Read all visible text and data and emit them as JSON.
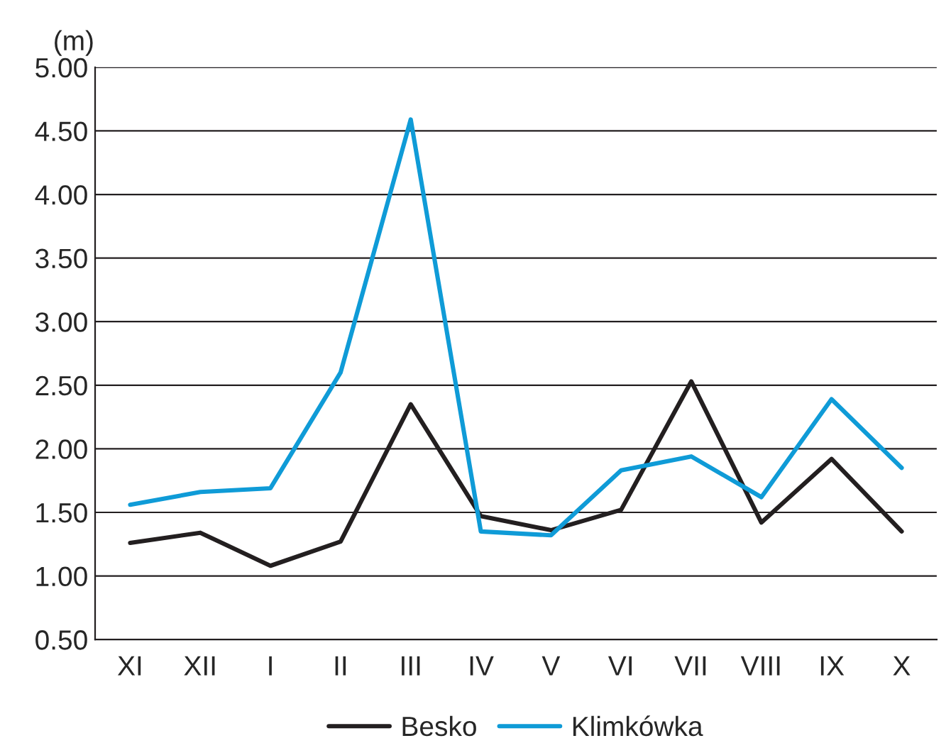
{
  "chart_data": {
    "type": "line",
    "ylabel": "(m)",
    "categories": [
      "XI",
      "XII",
      "I",
      "II",
      "III",
      "IV",
      "V",
      "VI",
      "VII",
      "VIII",
      "IX",
      "X"
    ],
    "series": [
      {
        "name": "Besko",
        "color": "#231f20",
        "values": [
          1.26,
          1.34,
          1.08,
          1.27,
          2.35,
          1.47,
          1.36,
          1.52,
          2.53,
          1.42,
          1.92,
          1.35
        ]
      },
      {
        "name": "Klimkówka",
        "color": "#0f9bd7",
        "values": [
          1.56,
          1.66,
          1.69,
          2.6,
          4.59,
          1.35,
          1.32,
          1.83,
          1.94,
          1.62,
          2.39,
          1.85
        ]
      }
    ],
    "ylim": [
      0.5,
      5.0
    ],
    "yticks": [
      {
        "value": 0.5,
        "label": "0.50"
      },
      {
        "value": 1.0,
        "label": "1.00"
      },
      {
        "value": 1.5,
        "label": "1.50"
      },
      {
        "value": 2.0,
        "label": "2.00"
      },
      {
        "value": 2.5,
        "label": "2.50"
      },
      {
        "value": 3.0,
        "label": "3.00"
      },
      {
        "value": 3.5,
        "label": "3.50"
      },
      {
        "value": 4.0,
        "label": "4.00"
      },
      {
        "value": 4.5,
        "label": "4.50"
      },
      {
        "value": 5.0,
        "label": "5.00"
      }
    ],
    "grid": "y",
    "legend": "bottom",
    "marker": "none",
    "line_style": "solid"
  }
}
